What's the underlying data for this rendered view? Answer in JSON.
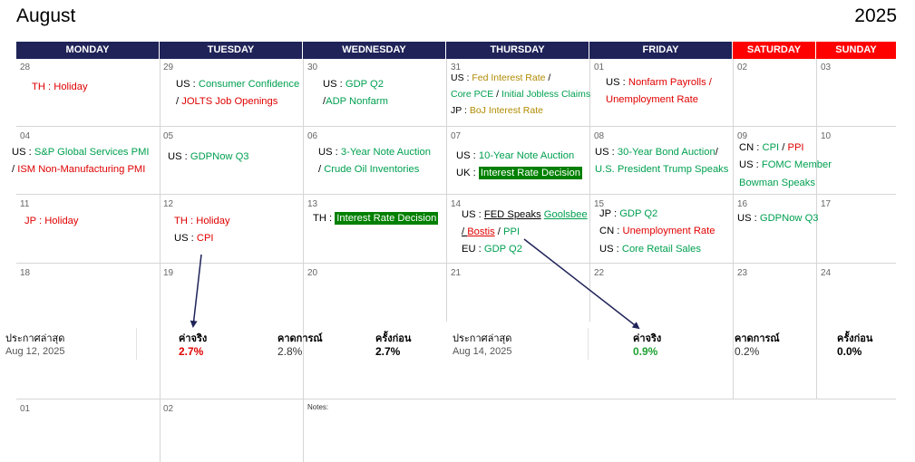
{
  "header": {
    "month": "August",
    "year": "2025"
  },
  "days": [
    "MONDAY",
    "TUESDAY",
    "WEDNESDAY",
    "THURSDAY",
    "FRIDAY",
    "SATURDAY",
    "SUNDAY"
  ],
  "colors": {
    "header_weekday": "#1f2358",
    "header_weekend": "#ff0000",
    "positive": "#00a050",
    "negative": "#e00000",
    "highlight": "#008000"
  },
  "week1": {
    "nums": [
      "28",
      "29",
      "30",
      "31",
      "01",
      "02",
      "03"
    ],
    "mon": {
      "country": "TH",
      "event": "Holiday"
    },
    "tue": {
      "country": "US",
      "event1": "Consumer Confidence",
      "event2": "JOLTS Job Openings"
    },
    "wed": {
      "country": "US",
      "event1": "GDP Q2",
      "event2": "ADP Nonfarm"
    },
    "thu": {
      "c1": "US",
      "e1": "Fed Interest Rate",
      "e2": "Core PCE",
      "e3": "Initial Jobless Claims",
      "c2": "JP",
      "e4": "BoJ Interest Rate"
    },
    "fri": {
      "country": "US",
      "event1": "Nonfarm Payrolls",
      "event2": "Unemployment Rate"
    }
  },
  "week2": {
    "nums": [
      "04",
      "05",
      "06",
      "07",
      "08",
      "09",
      "10"
    ],
    "mon": {
      "country": "US",
      "event1": "S&P Global Services PMI",
      "event2": "ISM Non-Manufacturing PMI"
    },
    "tue": {
      "country": "US",
      "event": "GDPNow Q3"
    },
    "wed": {
      "country": "US",
      "event1": "3-Year Note Auction",
      "event2": "Crude Oil Inventories"
    },
    "thu": {
      "c1": "US",
      "e1": "10-Year Note Auction",
      "c2": "UK",
      "e2": "Interest Rate Decision"
    },
    "fri": {
      "country": "US",
      "event1": "30-Year Bond Auction",
      "event2": "U.S. President Trump Speaks"
    },
    "sat": {
      "c1": "CN",
      "e1": "CPI",
      "e2": "PPI",
      "c2": "US",
      "e3": "FOMC Member",
      "e4": "Bowman Speaks"
    }
  },
  "week3": {
    "nums": [
      "11",
      "12",
      "13",
      "14",
      "15",
      "16",
      "17"
    ],
    "mon": {
      "country": "JP",
      "event": "Holiday"
    },
    "tue": {
      "c1": "TH",
      "e1": "Holiday",
      "c2": "US",
      "e2": "CPI"
    },
    "wed": {
      "country": "TH",
      "event": "Interest Rate Decision"
    },
    "thu": {
      "c1": "US",
      "e1a": "FED Speaks",
      "e1b": "Goolsbee",
      "e2": "Bostis",
      "e3": "PPI",
      "c2": "EU",
      "e4": "GDP Q2"
    },
    "fri": {
      "c1": "JP",
      "e1": "GDP Q2",
      "c2": "CN",
      "e2": "Unemployment Rate",
      "c3": "US",
      "e3": "Core Retail Sales"
    },
    "sat": {
      "country": "US",
      "event": "GDPNow Q3"
    }
  },
  "week4": {
    "nums": [
      "18",
      "19",
      "20",
      "21",
      "22",
      "23",
      "24"
    ]
  },
  "week6": {
    "nums": [
      "01",
      "02"
    ],
    "notes": "Notes:"
  },
  "stats_left": {
    "title": "ประกาศล่าสุด",
    "date": "Aug 12, 2025",
    "actual_label": "ค่าจริง",
    "actual": "2.7%",
    "forecast_label": "คาดการณ์",
    "forecast": "2.8%",
    "previous_label": "ครั้งก่อน",
    "previous": "2.7%"
  },
  "stats_right": {
    "title": "ประกาศล่าสุด",
    "date": "Aug 14, 2025",
    "actual_label": "ค่าจริง",
    "actual": "0.9%",
    "forecast_label": "คาดการณ์",
    "forecast": "0.2%",
    "previous_label": "ครั้งก่อน",
    "previous": "0.0%"
  }
}
